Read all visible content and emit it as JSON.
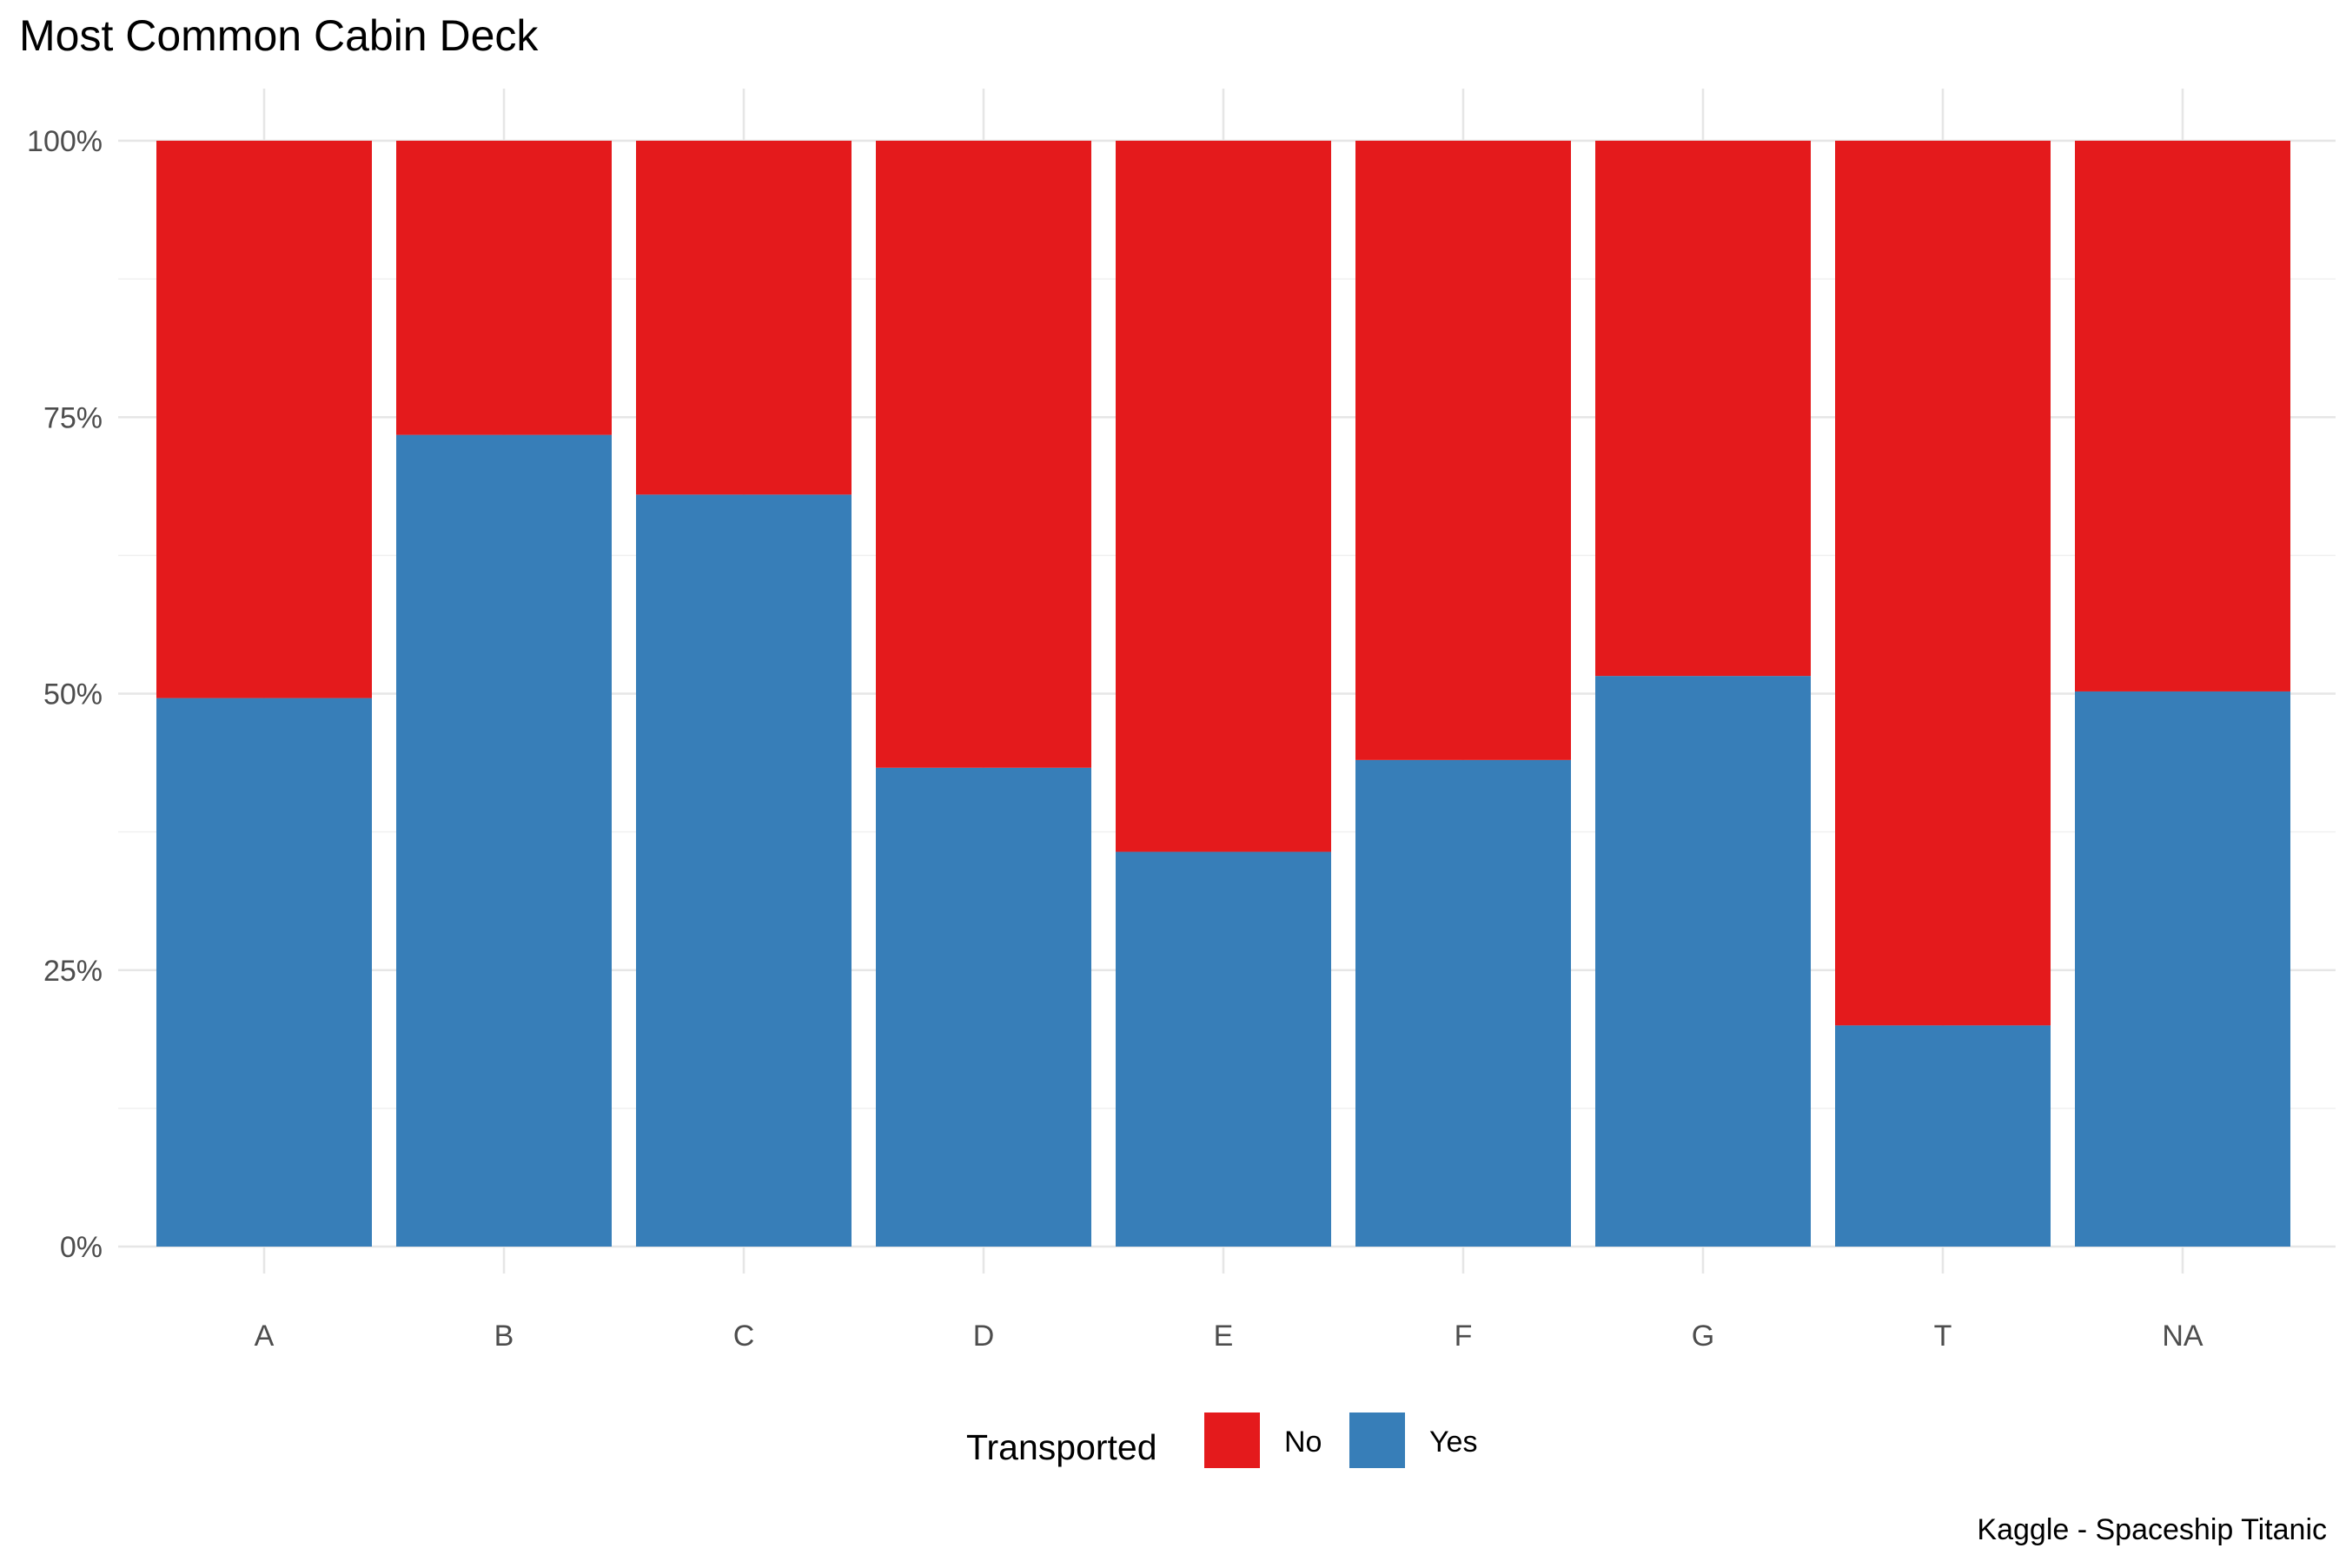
{
  "chart_data": {
    "type": "bar",
    "stacked": "percent",
    "title": "Most Common Cabin Deck",
    "caption": "Kaggle - Spaceship Titanic",
    "xlabel": "",
    "ylabel": "",
    "categories": [
      "A",
      "B",
      "C",
      "D",
      "E",
      "F",
      "G",
      "T",
      "NA"
    ],
    "ylim": [
      0,
      1
    ],
    "y_ticks": [
      0,
      0.25,
      0.5,
      0.75,
      1.0
    ],
    "y_tick_labels": [
      "0%",
      "25%",
      "50%",
      "75%",
      "100%"
    ],
    "grid": true,
    "legend": {
      "title": "Transported",
      "position": "bottom"
    },
    "series": [
      {
        "name": "Yes",
        "color": "#377EB8",
        "values": [
          0.496,
          0.734,
          0.68,
          0.433,
          0.357,
          0.44,
          0.516,
          0.2,
          0.502
        ]
      },
      {
        "name": "No",
        "color": "#E41A1C",
        "values": [
          0.504,
          0.266,
          0.32,
          0.567,
          0.643,
          0.56,
          0.484,
          0.8,
          0.498
        ]
      }
    ]
  }
}
